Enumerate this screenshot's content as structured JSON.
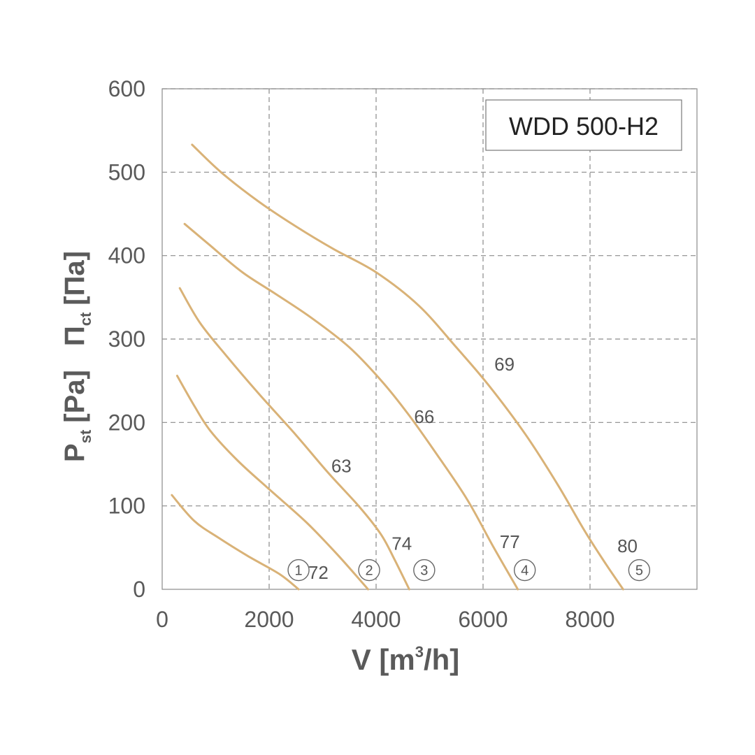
{
  "chart_data": {
    "type": "line",
    "title": "WDD 500-H2",
    "xlabel": {
      "main": "V [m",
      "sup": "3",
      "tail": "/h]"
    },
    "ylabel": {
      "p": "P",
      "p_sub": "st",
      "p_unit": "[Pa]",
      "pi": "Π",
      "pi_sub": "ct",
      "pi_unit": "[Па]"
    },
    "xlim": [
      0,
      10000
    ],
    "ylim": [
      0,
      600
    ],
    "x_ticks": [
      "0",
      "2000",
      "4000",
      "6000",
      "8000"
    ],
    "x_tick_values": [
      0,
      2000,
      4000,
      6000,
      8000
    ],
    "y_ticks": [
      "0",
      "100",
      "200",
      "300",
      "400",
      "500",
      "600"
    ],
    "y_tick_values": [
      0,
      100,
      200,
      300,
      400,
      500,
      600
    ],
    "grid": true,
    "line_color": "#d9b277",
    "series": [
      {
        "name": "1",
        "x": [
          180,
          600,
          1050,
          1600,
          2200,
          2550
        ],
        "y": [
          113,
          82,
          62,
          40,
          18,
          0
        ],
        "end_label": "72",
        "end_label_pos": [
          2920,
          20
        ]
      },
      {
        "name": "2",
        "x": [
          280,
          600,
          900,
          1400,
          2000,
          2700,
          3300,
          3850
        ],
        "y": [
          256,
          220,
          190,
          155,
          120,
          80,
          40,
          0
        ],
        "end_label": "74",
        "end_label_pos": [
          4480,
          55
        ]
      },
      {
        "name": "3",
        "x": [
          330,
          700,
          1200,
          1800,
          2500,
          3100,
          3700,
          4100,
          4350,
          4620
        ],
        "y": [
          361,
          320,
          280,
          235,
          185,
          140,
          98,
          65,
          35,
          0
        ],
        "end_label": "63",
        "end_label_pos": [
          3350,
          148
        ]
      },
      {
        "name": "4",
        "x": [
          420,
          900,
          1500,
          2100,
          2800,
          3500,
          4100,
          4600,
          5100,
          5700,
          6200,
          6650
        ],
        "y": [
          438,
          412,
          380,
          355,
          325,
          290,
          250,
          210,
          165,
          108,
          50,
          0
        ],
        "end_label": "66",
        "end_label_pos": [
          4900,
          207
        ]
      },
      {
        "name": "5",
        "x": [
          560,
          1100,
          1800,
          2500,
          3200,
          4000,
          4800,
          5500,
          6100,
          6800,
          7400,
          7900,
          8300,
          8620
        ],
        "y": [
          533,
          500,
          465,
          435,
          408,
          380,
          340,
          290,
          245,
          185,
          125,
          70,
          30,
          0
        ],
        "end_label": "69",
        "end_label_pos": [
          6400,
          270
        ]
      }
    ],
    "extra_labels": [
      {
        "text": "77",
        "x": 6500,
        "y": 57
      },
      {
        "text": "80",
        "x": 8700,
        "y": 52
      }
    ],
    "markers": [
      {
        "text": "1",
        "x": 2550,
        "y": 23
      },
      {
        "text": "2",
        "x": 3870,
        "y": 23
      },
      {
        "text": "3",
        "x": 4900,
        "y": 23
      },
      {
        "text": "4",
        "x": 6780,
        "y": 23
      },
      {
        "text": "5",
        "x": 8920,
        "y": 23
      }
    ]
  }
}
